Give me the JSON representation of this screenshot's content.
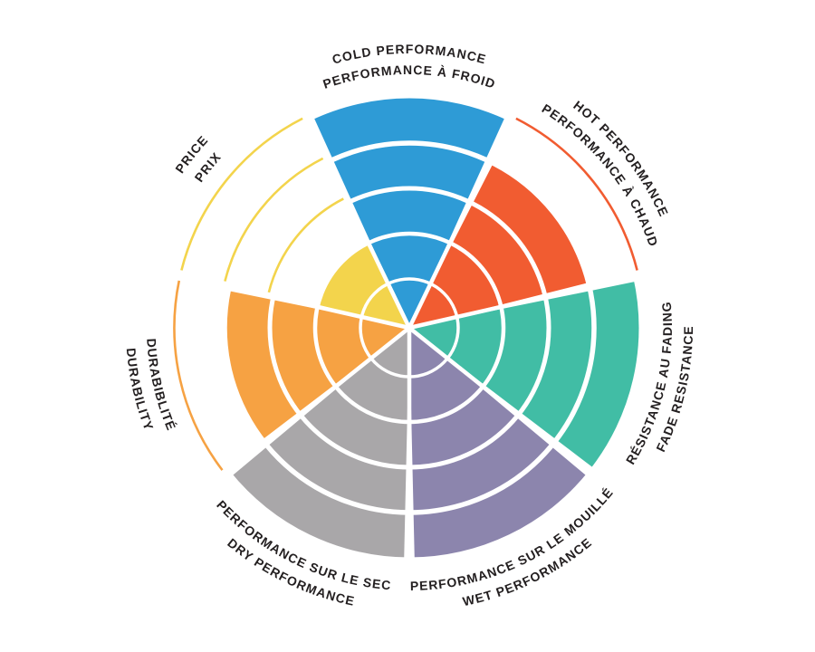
{
  "page": {
    "background": "#FFFFFF",
    "text_color": "#231F20"
  },
  "chart_data": {
    "type": "polar-wedge-ratings",
    "title": "",
    "description": "Seven-sector performance rating wheel; each sector filled to its rating out of 5 concentric rings; unfilled rings shown as thin colored arcs",
    "max_rings": 5,
    "ring_scale": [
      1,
      2,
      3,
      4,
      5
    ],
    "start_sector_angle_deg": -90,
    "sector_order": "clockwise-from-top",
    "legend": "none",
    "grid": "white ring gaps and white radial separators",
    "series": [
      {
        "id": "cold-performance",
        "lines": [
          "COLD PERFORMANCE",
          "PERFORMANCE À FROID"
        ],
        "value": 5,
        "color": "#2E9BD6"
      },
      {
        "id": "hot-performance",
        "lines": [
          "HOT PERFORMANCE",
          "PERFORMANCE À CHAUD"
        ],
        "value": 4,
        "color": "#F15C31"
      },
      {
        "id": "fade-resistance",
        "lines": [
          "RÉSISTANCE AU FADING",
          "FADE RESISTANCE"
        ],
        "value": 5,
        "color": "#41BDA5"
      },
      {
        "id": "wet-performance",
        "lines": [
          "PERFORMANCE SUR LE MOUILLÉ",
          "WET PERFORMANCE"
        ],
        "value": 5,
        "color": "#8C85AD"
      },
      {
        "id": "dry-performance",
        "lines": [
          "PERFORMANCE SUR LE SEC",
          "DRY PERFORMANCE"
        ],
        "value": 5,
        "color": "#A9A7A9"
      },
      {
        "id": "durability",
        "lines": [
          "DURABIBLITÉ",
          "DURABILITY"
        ],
        "value": 4,
        "color": "#F6A243"
      },
      {
        "id": "price",
        "lines": [
          "PRICE",
          "PRIX"
        ],
        "value": 2,
        "color": "#F3D44C"
      }
    ]
  }
}
